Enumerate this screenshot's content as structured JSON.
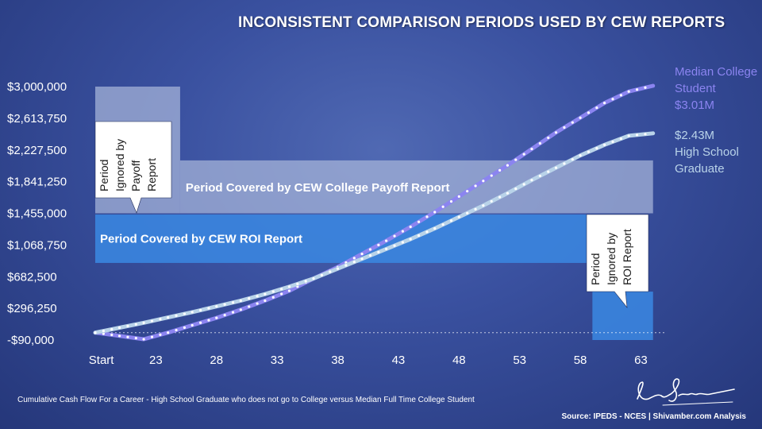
{
  "chart_data": {
    "type": "line",
    "title": "INCONSISTENT COMPARISON PERIODS USED BY CEW REPORTS",
    "x_ticks": [
      "Start",
      "23",
      "28",
      "33",
      "38",
      "43",
      "48",
      "53",
      "58",
      "63"
    ],
    "y_ticks": [
      "$3,000,000",
      "$2,613,750",
      "$2,227,500",
      "$1,841,250",
      "$1,455,000",
      "$1,068,750",
      "$682,500",
      "$296,250",
      "-$90,000"
    ],
    "ylim": [
      -90000,
      3000000
    ],
    "xlim": [
      18,
      65
    ],
    "series": [
      {
        "name": "Median College Student",
        "color": "#8b84f0",
        "end_label": [
          "Median College",
          "Student",
          "$3.01M"
        ],
        "x": [
          18,
          20,
          22,
          24,
          26,
          28,
          30,
          32,
          34,
          36,
          38,
          40,
          42,
          44,
          46,
          48,
          50,
          52,
          54,
          56,
          58,
          60,
          62,
          64
        ],
        "y": [
          0,
          -40000,
          -80000,
          0,
          90000,
          180000,
          280000,
          390000,
          510000,
          660000,
          800000,
          960000,
          1120000,
          1290000,
          1470000,
          1660000,
          1850000,
          2040000,
          2240000,
          2440000,
          2620000,
          2800000,
          2940000,
          3010000
        ]
      },
      {
        "name": "High School Graduate",
        "color": "#b9d3e9",
        "end_label": [
          "$2.43M",
          "High School",
          "Graduate"
        ],
        "x": [
          18,
          20,
          22,
          24,
          26,
          28,
          30,
          32,
          34,
          36,
          38,
          40,
          42,
          44,
          46,
          48,
          50,
          52,
          54,
          56,
          58,
          60,
          62,
          64
        ],
        "y": [
          0,
          60000,
          120000,
          185000,
          250000,
          320000,
          390000,
          470000,
          560000,
          660000,
          780000,
          900000,
          1020000,
          1140000,
          1270000,
          1410000,
          1550000,
          1700000,
          1860000,
          2010000,
          2160000,
          2290000,
          2400000,
          2430000
        ]
      }
    ],
    "regions": [
      {
        "label": "Period Covered by CEW College Payoff Report",
        "x": [
          25,
          64
        ],
        "y": [
          1455000,
          2100000
        ],
        "color": "#a8b5d9"
      },
      {
        "label": "Period Covered by CEW ROI Report",
        "x": [
          18,
          59
        ],
        "y": [
          850000,
          1440000
        ],
        "color": "#3a86e0"
      },
      {
        "label": "",
        "x": [
          18,
          25
        ],
        "y": [
          1455000,
          3000000
        ],
        "color": "#a8b5d9"
      },
      {
        "label": "",
        "x": [
          59,
          64
        ],
        "y": [
          -90000,
          500000
        ],
        "color": "#3a86e0"
      }
    ],
    "callouts": [
      {
        "lines": [
          "Period",
          "Ignored by",
          "Payoff",
          "Report"
        ]
      },
      {
        "lines": [
          "Period",
          "Ignored by",
          "ROI Report"
        ]
      }
    ]
  },
  "footnote": "Cumulative Cash Flow For a Career - High School Graduate who does not go to College versus Median Full Time College Student",
  "source": "Source: IPEDS - NCES | Shivamber.com Analysis"
}
